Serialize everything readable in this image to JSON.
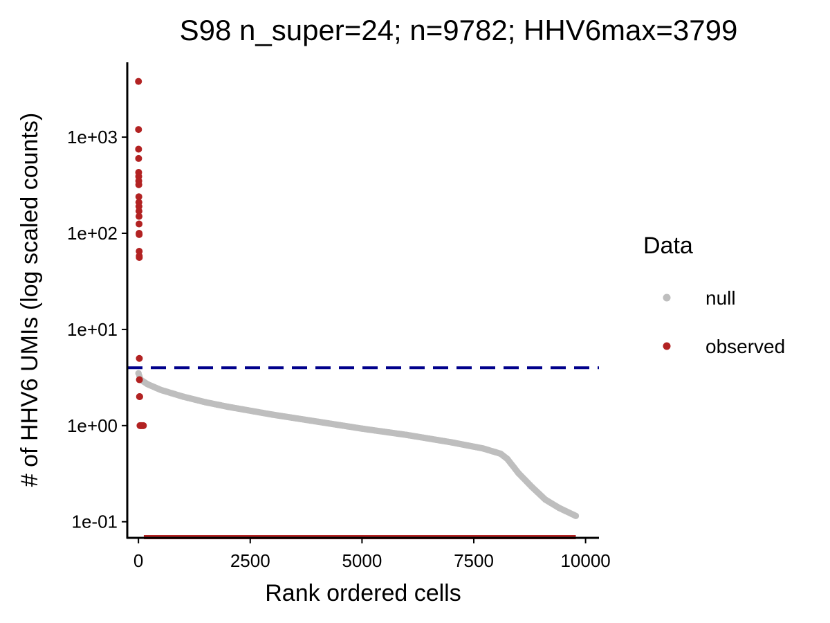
{
  "chart_data": {
    "type": "scatter",
    "title": "S98 n_super=24; n=9782; HHV6max=3799",
    "xlabel": "Rank ordered cells",
    "ylabel": "# of HHV6 UMIs (log scaled counts)",
    "y_scale": "log10",
    "xlim": [
      -250,
      10300
    ],
    "ylim": [
      0.068,
      6000
    ],
    "x_ticks": [
      0,
      2500,
      5000,
      7500,
      10000
    ],
    "x_tick_labels": [
      "0",
      "2500",
      "5000",
      "7500",
      "10000"
    ],
    "y_ticks": [
      0.1,
      1,
      10,
      100,
      1000
    ],
    "y_tick_labels": [
      "1e-01",
      "1e+00",
      "1e+01",
      "1e+02",
      "1e+03"
    ],
    "grid": false,
    "legend": {
      "title": "Data",
      "placement": "right",
      "entries": [
        {
          "label": "null",
          "color": "#BEBEBE"
        },
        {
          "label": "observed",
          "color": "#B22222"
        }
      ]
    },
    "threshold_line": {
      "y": 4,
      "color": "#00008B",
      "style": "dashed"
    },
    "series": [
      {
        "name": "null",
        "color": "#BEBEBE",
        "curve_points": [
          {
            "x": 1,
            "y": 3.5
          },
          {
            "x": 50,
            "y": 3.0
          },
          {
            "x": 200,
            "y": 2.7
          },
          {
            "x": 500,
            "y": 2.35
          },
          {
            "x": 1000,
            "y": 2.0
          },
          {
            "x": 1500,
            "y": 1.75
          },
          {
            "x": 2000,
            "y": 1.57
          },
          {
            "x": 3000,
            "y": 1.3
          },
          {
            "x": 4000,
            "y": 1.1
          },
          {
            "x": 5000,
            "y": 0.93
          },
          {
            "x": 6000,
            "y": 0.8
          },
          {
            "x": 7000,
            "y": 0.67
          },
          {
            "x": 7700,
            "y": 0.58
          },
          {
            "x": 8100,
            "y": 0.51
          },
          {
            "x": 8250,
            "y": 0.45
          },
          {
            "x": 8500,
            "y": 0.32
          },
          {
            "x": 8800,
            "y": 0.23
          },
          {
            "x": 9100,
            "y": 0.17
          },
          {
            "x": 9400,
            "y": 0.14
          },
          {
            "x": 9782,
            "y": 0.115
          }
        ]
      },
      {
        "name": "observed",
        "color": "#B22222",
        "points": [
          {
            "x": 1,
            "y": 3799
          },
          {
            "x": 2,
            "y": 1200
          },
          {
            "x": 3,
            "y": 750
          },
          {
            "x": 4,
            "y": 600
          },
          {
            "x": 5,
            "y": 430
          },
          {
            "x": 6,
            "y": 390
          },
          {
            "x": 7,
            "y": 350
          },
          {
            "x": 8,
            "y": 320
          },
          {
            "x": 9,
            "y": 240
          },
          {
            "x": 10,
            "y": 210
          },
          {
            "x": 11,
            "y": 190
          },
          {
            "x": 12,
            "y": 170
          },
          {
            "x": 13,
            "y": 150
          },
          {
            "x": 14,
            "y": 125
          },
          {
            "x": 15,
            "y": 100
          },
          {
            "x": 16,
            "y": 97
          },
          {
            "x": 17,
            "y": 65
          },
          {
            "x": 18,
            "y": 58
          },
          {
            "x": 19,
            "y": 56
          },
          {
            "x": 20,
            "y": 5
          },
          {
            "x": 22,
            "y": 3
          },
          {
            "x": 24,
            "y": 2
          },
          {
            "x": 28,
            "y": 2
          },
          {
            "x": 35,
            "y": 1
          },
          {
            "x": 50,
            "y": 1
          },
          {
            "x": 70,
            "y": 1
          },
          {
            "x": 90,
            "y": 1
          },
          {
            "x": 110,
            "y": 1
          }
        ],
        "zero_band": {
          "x_from": 120,
          "x_to": 9782,
          "note": "values below axis (0 counts)"
        }
      }
    ]
  }
}
